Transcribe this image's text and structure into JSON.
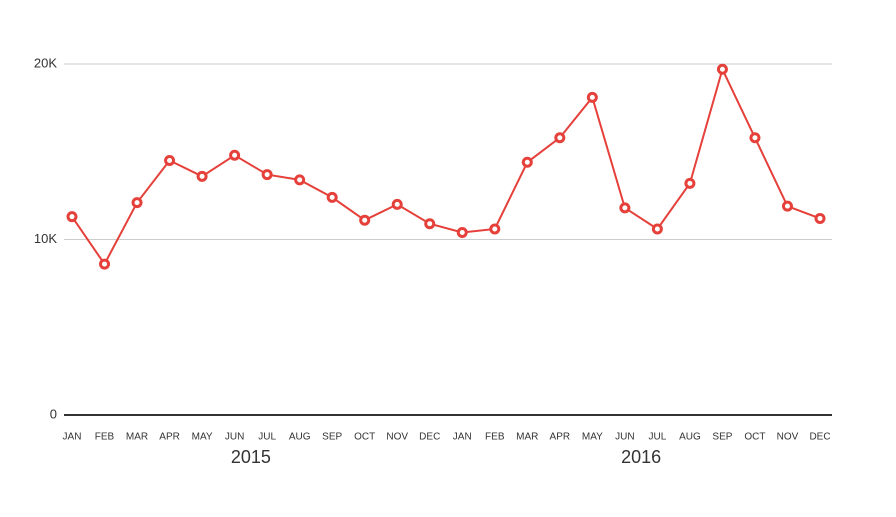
{
  "chart_data": {
    "type": "line",
    "categories": [
      "JAN",
      "FEB",
      "MAR",
      "APR",
      "MAY",
      "JUN",
      "JUL",
      "AUG",
      "SEP",
      "OCT",
      "NOV",
      "DEC",
      "JAN",
      "FEB",
      "MAR",
      "APR",
      "MAY",
      "JUN",
      "JUL",
      "AUG",
      "SEP",
      "OCT",
      "NOV",
      "DEC"
    ],
    "x_groups": [
      "2015",
      "2016"
    ],
    "series": [
      {
        "color": "#e5403a",
        "values": [
          11300,
          8600,
          12100,
          14500,
          13600,
          14800,
          13700,
          13400,
          12400,
          11100,
          12000,
          10900,
          10400,
          10600,
          14400,
          15800,
          18100,
          11800,
          10600,
          13200,
          19700,
          15800,
          11900,
          11200
        ]
      }
    ],
    "ylim": [
      0,
      20000
    ],
    "yticks": [
      0,
      {
        "value": 10000,
        "label": "10K"
      },
      {
        "value": 20000,
        "label": "20K"
      }
    ],
    "grid": true
  }
}
